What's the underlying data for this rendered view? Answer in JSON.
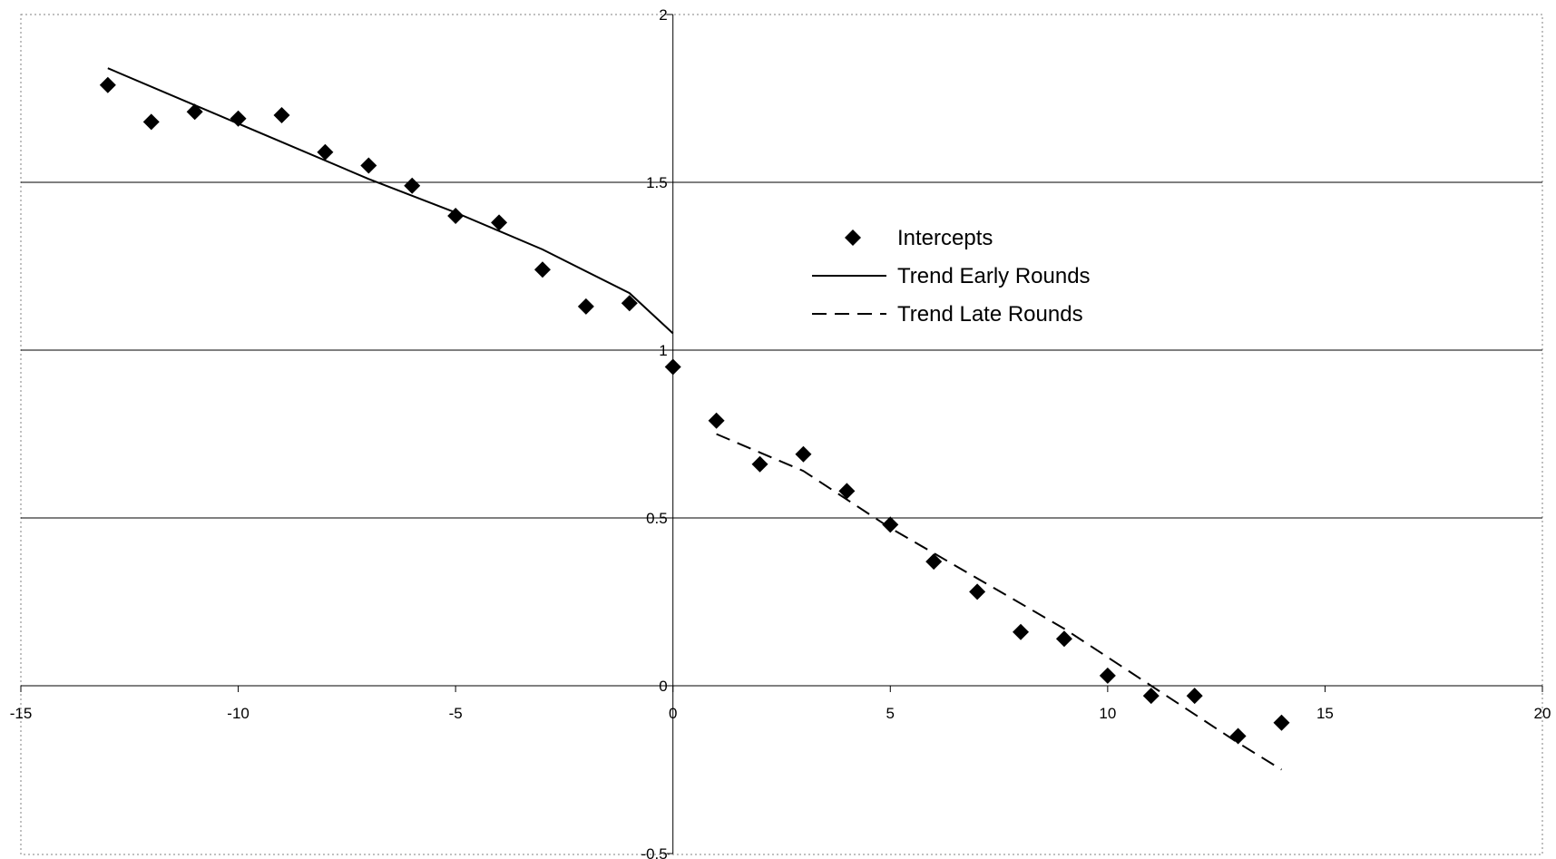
{
  "chart_data": {
    "type": "scatter",
    "title": "",
    "xlabel": "",
    "ylabel": "",
    "xlim": [
      -15,
      20
    ],
    "ylim": [
      -0.5,
      2
    ],
    "x_ticks": [
      "-15",
      "-10",
      "-5",
      "0",
      "5",
      "10",
      "15",
      "20"
    ],
    "y_ticks": [
      "-0.5",
      "0",
      "0.5",
      "1",
      "1.5",
      "2"
    ],
    "grid": "horizontal",
    "legend_position": "upper-center",
    "series": [
      {
        "name": "Intercepts",
        "kind": "markers",
        "marker": "diamond",
        "color": "#000000",
        "x": [
          -13,
          -12,
          -11,
          -10,
          -9,
          -8,
          -7,
          -6,
          -5,
          -4,
          -3,
          -2,
          -1,
          0,
          1,
          2,
          3,
          4,
          5,
          6,
          7,
          8,
          9,
          10,
          11,
          12,
          13,
          14
        ],
        "y": [
          1.79,
          1.68,
          1.71,
          1.69,
          1.7,
          1.59,
          1.55,
          1.49,
          1.4,
          1.38,
          1.24,
          1.13,
          1.14,
          0.95,
          0.79,
          0.66,
          0.69,
          0.58,
          0.48,
          0.37,
          0.28,
          0.16,
          0.14,
          0.03,
          -0.03,
          -0.03,
          -0.15,
          -0.11
        ]
      },
      {
        "name": "Trend Early Rounds",
        "kind": "line",
        "style": "solid",
        "color": "#000000",
        "x": [
          -13,
          -11,
          -9,
          -7,
          -5,
          -3,
          -1,
          0
        ],
        "y": [
          1.84,
          1.73,
          1.62,
          1.51,
          1.41,
          1.3,
          1.17,
          1.05
        ]
      },
      {
        "name": "Trend Late Rounds",
        "kind": "line",
        "style": "dashed",
        "color": "#000000",
        "x": [
          1,
          3,
          5,
          7,
          9,
          11,
          13,
          14
        ],
        "y": [
          0.75,
          0.64,
          0.47,
          0.32,
          0.17,
          0.0,
          -0.17,
          -0.25
        ]
      }
    ]
  }
}
